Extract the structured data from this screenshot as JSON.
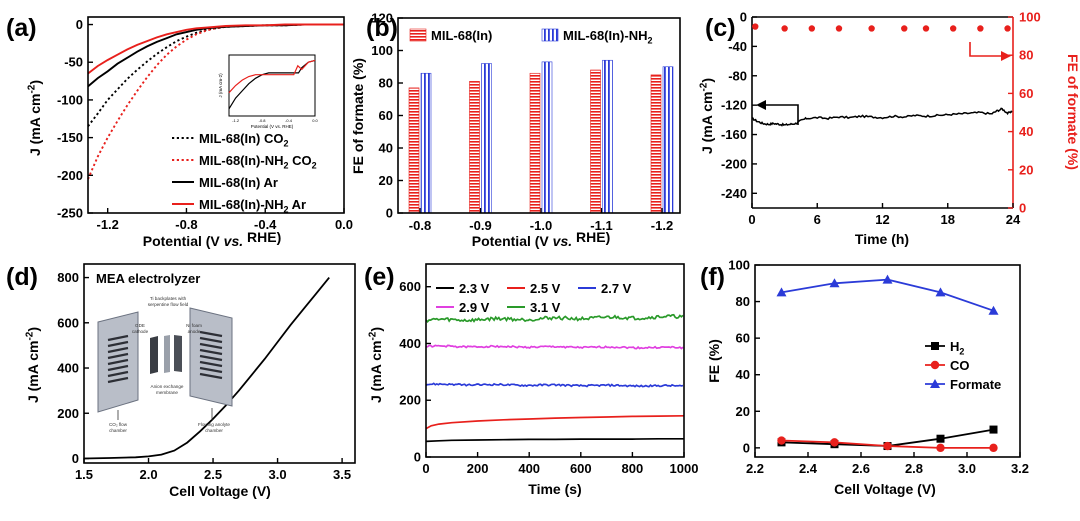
{
  "chart_data": [
    {
      "panel": "(a)",
      "type": "line",
      "xlabel_parts": [
        "Potential (V ",
        "vs.",
        " RHE)"
      ],
      "ylabel_parts": [
        "J (mA cm",
        "-2",
        ")"
      ],
      "xlim": [
        -1.3,
        0.0
      ],
      "ylim": [
        -250,
        10
      ],
      "xticks": [
        -1.2,
        -0.8,
        -0.4,
        0.0
      ],
      "xtick_labels": [
        "-1.2",
        "-0.8",
        "-0.4",
        "0.0"
      ],
      "yticks": [
        0,
        -50,
        -100,
        -150,
        -200,
        -250
      ],
      "ytick_labels": [
        "0",
        "-50",
        "-100",
        "-150",
        "-200",
        "-250"
      ],
      "series": [
        {
          "name": "MIL-68(In) CO2",
          "legend_parts": [
            "MIL-68(In) CO",
            "2",
            ""
          ],
          "color": "#000000",
          "dash": "dot",
          "x": [
            -1.3,
            -1.25,
            -1.2,
            -1.15,
            -1.1,
            -1.05,
            -1.0,
            -0.95,
            -0.9,
            -0.85,
            -0.8,
            -0.75,
            -0.7,
            -0.65,
            -0.6,
            -0.5,
            -0.4,
            -0.3,
            -0.2,
            -0.1,
            0.0
          ],
          "y": [
            -135,
            -118,
            -100,
            -86,
            -72,
            -60,
            -49,
            -39,
            -30,
            -22,
            -16,
            -11,
            -7,
            -5,
            -3,
            -2,
            -1,
            -1,
            0,
            0,
            0
          ]
        },
        {
          "name": "MIL-68(In)-NH2 CO2",
          "legend_parts": [
            "MIL-68(In)-NH",
            "2",
            " CO",
            "2"
          ],
          "color": "#e8201c",
          "dash": "dot",
          "x": [
            -1.3,
            -1.25,
            -1.2,
            -1.15,
            -1.1,
            -1.05,
            -1.0,
            -0.95,
            -0.9,
            -0.85,
            -0.8,
            -0.75,
            -0.7,
            -0.65,
            -0.6,
            -0.5,
            -0.4,
            -0.3,
            -0.2,
            -0.1,
            0.0
          ],
          "y": [
            -205,
            -175,
            -150,
            -128,
            -107,
            -88,
            -70,
            -54,
            -40,
            -29,
            -20,
            -13,
            -8,
            -5,
            -3,
            -2,
            -1,
            -1,
            0,
            0,
            0
          ]
        },
        {
          "name": "MIL-68(In) Ar",
          "legend_parts": [
            "MIL-68(In) Ar"
          ],
          "color": "#000000",
          "dash": "solid",
          "x": [
            -1.3,
            -1.25,
            -1.2,
            -1.15,
            -1.1,
            -1.05,
            -1.0,
            -0.95,
            -0.9,
            -0.85,
            -0.8,
            -0.75,
            -0.7,
            -0.6,
            -0.5,
            -0.4,
            -0.3,
            -0.2,
            -0.1,
            0.0
          ],
          "y": [
            -82,
            -71,
            -62,
            -52,
            -44,
            -36,
            -29,
            -23,
            -18,
            -13,
            -10,
            -7,
            -5,
            -3,
            -2,
            -1,
            -1,
            0,
            0,
            0
          ]
        },
        {
          "name": "MIL-68(In)-NH2 Ar",
          "legend_parts": [
            "MIL-68(In)-NH",
            "2",
            " Ar"
          ],
          "color": "#e8201c",
          "dash": "solid",
          "x": [
            -1.3,
            -1.25,
            -1.2,
            -1.15,
            -1.1,
            -1.05,
            -1.0,
            -0.95,
            -0.9,
            -0.85,
            -0.8,
            -0.75,
            -0.7,
            -0.6,
            -0.5,
            -0.4,
            -0.3,
            -0.2,
            -0.1,
            0.0
          ],
          "y": [
            -65,
            -55,
            -47,
            -40,
            -33,
            -27,
            -22,
            -17,
            -13,
            -10,
            -7,
            -5,
            -4,
            -2,
            -1,
            -1,
            0,
            0,
            0,
            0
          ]
        }
      ],
      "inset": {
        "xlabel": "Potential (V vs. RHE)",
        "ylabel": "J (mA cm-2)",
        "xlim": [
          -1.3,
          0.0
        ],
        "xtick_labels": [
          "-1.2",
          "-0.8",
          "-0.4",
          "0.0"
        ],
        "ar_black": {
          "x": [
            -1.3,
            -1.2,
            -1.1,
            -1.0,
            -0.9,
            -0.8,
            -0.7,
            -0.6,
            -0.5,
            -0.4,
            -0.3,
            -0.25,
            -0.2,
            -0.1,
            0.0
          ],
          "y": [
            -28,
            -22,
            -18,
            -14,
            -11,
            -9,
            -8,
            -8,
            -8,
            -8,
            -8,
            -8,
            -5,
            -2,
            -1
          ]
        },
        "ar_red": {
          "x": [
            -1.3,
            -1.2,
            -1.1,
            -1.0,
            -0.9,
            -0.8,
            -0.7,
            -0.6,
            -0.5,
            -0.4,
            -0.32,
            -0.26,
            -0.2,
            -0.1,
            0.0
          ],
          "y": [
            -19,
            -15,
            -12,
            -10,
            -9,
            -9,
            -9,
            -9,
            -9,
            -9,
            -9,
            -4,
            -6,
            -2,
            -1
          ]
        }
      }
    },
    {
      "panel": "(b)",
      "type": "bar",
      "xlabel_parts": [
        "Potential (V ",
        "vs.",
        " RHE)"
      ],
      "ylabel": "FE of formate (%)",
      "categories": [
        "-0.8",
        "-0.9",
        "-1.0",
        "-1.1",
        "-1.2"
      ],
      "ylim": [
        0,
        120
      ],
      "yticks": [
        0,
        20,
        40,
        60,
        80,
        100,
        120
      ],
      "ytick_labels": [
        "0",
        "20",
        "40",
        "60",
        "80",
        "100",
        "120"
      ],
      "series": [
        {
          "name": "MIL-68(In)",
          "legend_parts": [
            "MIL-68(In)"
          ],
          "color": "#e8201c",
          "values": [
            77,
            81,
            86,
            88,
            85
          ]
        },
        {
          "name": "MIL-68(In)-NH2",
          "legend_parts": [
            "MIL-68(In)-NH",
            "2",
            ""
          ],
          "color": "#2b3bd8",
          "values": [
            86,
            92,
            93,
            94,
            90
          ]
        }
      ]
    },
    {
      "panel": "(c)",
      "type": "line+scatter",
      "xlabel": "Time (h)",
      "ylabel_parts": [
        "J (mA cm",
        "-2",
        ")"
      ],
      "y2label": "FE of formate (%)",
      "xlim": [
        0,
        24
      ],
      "ylim": [
        -260,
        0
      ],
      "y2lim": [
        0,
        100
      ],
      "xticks": [
        0,
        6,
        12,
        18,
        24
      ],
      "xtick_labels": [
        "0",
        "6",
        "12",
        "18",
        "24"
      ],
      "yticks": [
        0,
        -40,
        -80,
        -120,
        -160,
        -200,
        -240
      ],
      "ytick_labels": [
        "0",
        "-40",
        "-80",
        "-120",
        "-160",
        "-200",
        "-240"
      ],
      "y2ticks": [
        0,
        20,
        40,
        60,
        80,
        100
      ],
      "y2tick_labels": [
        "0",
        "20",
        "40",
        "60",
        "80",
        "100"
      ],
      "current": {
        "x": [
          0,
          0.5,
          1,
          1.5,
          2,
          2.5,
          3,
          3.5,
          4,
          4.5,
          5,
          6,
          7,
          8,
          9,
          10,
          11,
          12,
          13,
          14,
          15,
          16,
          17,
          18,
          19,
          20,
          21,
          22,
          22.5,
          23,
          23.5,
          24
        ],
        "y": [
          -138,
          -142,
          -145,
          -146,
          -145,
          -146,
          -147,
          -146,
          -145,
          -141,
          -138,
          -137,
          -138,
          -136,
          -137,
          -135,
          -136,
          -137,
          -135,
          -136,
          -134,
          -135,
          -134,
          -133,
          -132,
          -131,
          -130,
          -132,
          -128,
          -125,
          -131,
          -129
        ]
      },
      "fe": {
        "x": [
          0.3,
          3,
          5.5,
          8,
          11,
          14,
          16,
          18.5,
          21,
          23.5
        ],
        "y": [
          95,
          94,
          94,
          94,
          94,
          94,
          94,
          94,
          94,
          94
        ]
      }
    },
    {
      "panel": "(d)",
      "type": "line",
      "title": "MEA electrolyzer",
      "xlabel": "Cell Voltage (V)",
      "ylabel_parts": [
        "J (mA cm",
        "-2",
        ")"
      ],
      "xlim": [
        1.5,
        3.6
      ],
      "ylim": [
        -20,
        860
      ],
      "xticks": [
        1.5,
        2.0,
        2.5,
        3.0,
        3.5
      ],
      "xtick_labels": [
        "1.5",
        "2.0",
        "2.5",
        "3.0",
        "3.5"
      ],
      "yticks": [
        0,
        200,
        400,
        600,
        800
      ],
      "ytick_labels": [
        "0",
        "200",
        "400",
        "600",
        "800"
      ],
      "x": [
        1.5,
        1.7,
        1.9,
        2.0,
        2.1,
        2.2,
        2.3,
        2.4,
        2.5,
        2.6,
        2.7,
        2.8,
        2.9,
        3.0,
        3.1,
        3.2,
        3.3,
        3.4
      ],
      "y": [
        0,
        2,
        5,
        9,
        17,
        35,
        70,
        120,
        175,
        235,
        300,
        370,
        440,
        515,
        590,
        660,
        730,
        800
      ],
      "schematic_labels": [
        "Ti backplates with",
        "serpentine flow field",
        "GDE",
        "cathode",
        "Ni foam",
        "anode",
        "Anion exchange",
        "membrane",
        "CO₂ flow",
        "chamber",
        "Flowing anolyte",
        "chamber"
      ]
    },
    {
      "panel": "(e)",
      "type": "line",
      "xlabel": "Time (s)",
      "ylabel_parts": [
        "J (mA cm",
        "-2",
        ")"
      ],
      "xlim": [
        0,
        1000
      ],
      "ylim": [
        0,
        680
      ],
      "xticks": [
        0,
        200,
        400,
        600,
        800,
        1000
      ],
      "xtick_labels": [
        "0",
        "200",
        "400",
        "600",
        "800",
        "1000"
      ],
      "yticks": [
        0,
        200,
        400,
        600
      ],
      "ytick_labels": [
        "0",
        "200",
        "400",
        "600"
      ],
      "series": [
        {
          "name": "2.3 V",
          "color": "#000000",
          "x": [
            0,
            50,
            100,
            200,
            300,
            400,
            500,
            600,
            700,
            800,
            900,
            1000
          ],
          "y": [
            55,
            57,
            59,
            60,
            61,
            62,
            62,
            63,
            63,
            63,
            64,
            64
          ]
        },
        {
          "name": "2.5 V",
          "color": "#e8201c",
          "x": [
            0,
            20,
            50,
            100,
            200,
            300,
            400,
            500,
            600,
            700,
            800,
            900,
            1000
          ],
          "y": [
            100,
            110,
            116,
            121,
            127,
            131,
            134,
            137,
            139,
            141,
            143,
            144,
            145
          ]
        },
        {
          "name": "2.7 V",
          "color": "#2b3bd8",
          "base": 256,
          "noise": 3,
          "drift": -6
        },
        {
          "name": "2.9 V",
          "color": "#e040e0",
          "base": 390,
          "noise": 3,
          "drift": -5
        },
        {
          "name": "3.1 V",
          "color": "#2a9a2a",
          "base": 482,
          "noise": 6,
          "drift": 12
        }
      ]
    },
    {
      "panel": "(f)",
      "type": "line",
      "xlabel": "Cell Voltage (V)",
      "ylabel": "FE (%)",
      "xlim": [
        2.2,
        3.2
      ],
      "ylim": [
        -5,
        100
      ],
      "xticks": [
        2.2,
        2.4,
        2.6,
        2.8,
        3.0,
        3.2
      ],
      "xtick_labels": [
        "2.2",
        "2.4",
        "2.6",
        "2.8",
        "3.0",
        "3.2"
      ],
      "yticks": [
        0,
        20,
        40,
        60,
        80,
        100
      ],
      "ytick_labels": [
        "0",
        "20",
        "40",
        "60",
        "80",
        "100"
      ],
      "x": [
        2.3,
        2.5,
        2.7,
        2.9,
        3.1
      ],
      "series": [
        {
          "name": "H2",
          "legend_parts": [
            "H",
            "2",
            ""
          ],
          "color": "#000000",
          "marker": "square",
          "values": [
            3,
            2,
            1,
            5,
            10
          ]
        },
        {
          "name": "CO",
          "legend_parts": [
            "CO"
          ],
          "color": "#e8201c",
          "marker": "circle",
          "values": [
            4,
            3,
            1,
            0,
            0
          ]
        },
        {
          "name": "Formate",
          "legend_parts": [
            "Formate"
          ],
          "color": "#2b3bd8",
          "marker": "triangle",
          "values": [
            85,
            90,
            92,
            85,
            75
          ]
        }
      ]
    }
  ]
}
